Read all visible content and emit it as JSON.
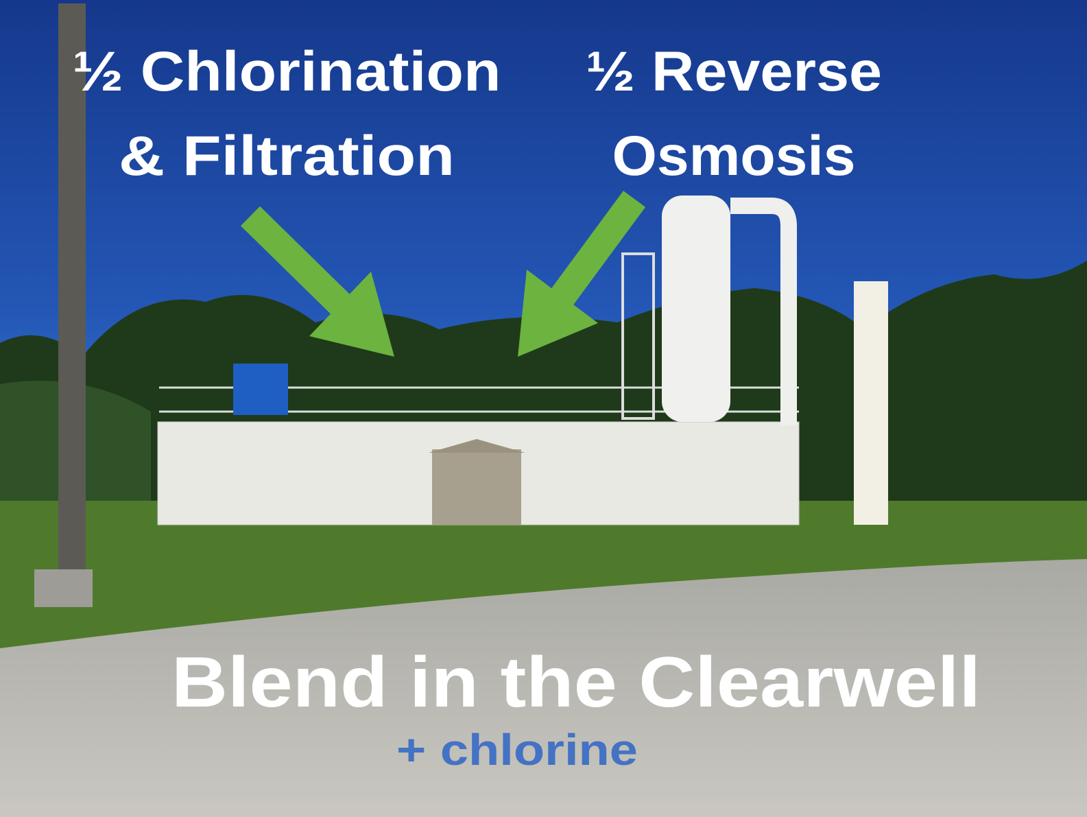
{
  "labels": {
    "left": [
      "½ Chlorination",
      "& Filtration"
    ],
    "right": [
      "½ Reverse",
      "Osmosis"
    ],
    "bottom": "Blend in the Clearwell",
    "note": "+ chlorine"
  }
}
